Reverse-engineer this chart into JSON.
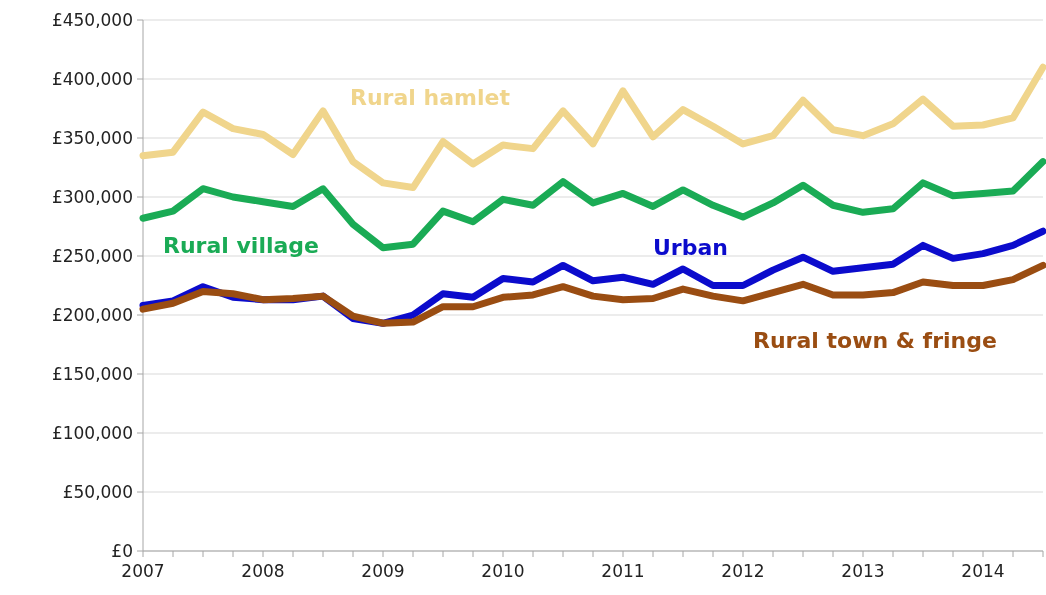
{
  "chart_data": {
    "type": "line",
    "categories": [
      "2007",
      null,
      null,
      null,
      "2008",
      null,
      null,
      null,
      "2009",
      null,
      null,
      null,
      "2010",
      null,
      null,
      null,
      "2011",
      null,
      null,
      null,
      "2012",
      null,
      null,
      null,
      "2013",
      null,
      null,
      null,
      "2014",
      null,
      null
    ],
    "series": [
      {
        "name": "Rural hamlet",
        "color": "#f0d58c",
        "values": [
          335000,
          338000,
          372000,
          358000,
          353000,
          336000,
          373000,
          330000,
          312000,
          308000,
          347000,
          328000,
          344000,
          341000,
          373000,
          345000,
          390000,
          351000,
          374000,
          360000,
          345000,
          352000,
          382000,
          357000,
          352000,
          362000,
          383000,
          360000,
          361000,
          367000,
          410000
        ]
      },
      {
        "name": "Rural village",
        "color": "#1aab55",
        "values": [
          282000,
          288000,
          307000,
          300000,
          296000,
          292000,
          307000,
          277000,
          257000,
          260000,
          288000,
          279000,
          298000,
          293000,
          313000,
          295000,
          303000,
          292000,
          306000,
          293000,
          283000,
          295000,
          310000,
          293000,
          287000,
          290000,
          312000,
          301000,
          303000,
          305000,
          330000
        ]
      },
      {
        "name": "Urban",
        "color": "#0b0bcc",
        "values": [
          208000,
          212000,
          224000,
          215000,
          213000,
          213000,
          216000,
          197000,
          193000,
          200000,
          218000,
          215000,
          231000,
          228000,
          242000,
          229000,
          232000,
          226000,
          239000,
          225000,
          225000,
          238000,
          249000,
          237000,
          240000,
          243000,
          259000,
          248000,
          252000,
          259000,
          271000
        ]
      },
      {
        "name": "Rural town & fringe",
        "color": "#9a4d12",
        "values": [
          205000,
          210000,
          220000,
          218000,
          213000,
          214000,
          216000,
          199000,
          193000,
          194000,
          207000,
          207000,
          215000,
          217000,
          224000,
          216000,
          213000,
          214000,
          222000,
          216000,
          212000,
          219000,
          226000,
          217000,
          217000,
          219000,
          228000,
          225000,
          225000,
          230000,
          242000
        ]
      }
    ],
    "ylim": [
      0,
      450000
    ],
    "yticks": [
      {
        "value": 0,
        "label": "£0"
      },
      {
        "value": 50000,
        "label": "£50,000"
      },
      {
        "value": 100000,
        "label": "£100,000"
      },
      {
        "value": 150000,
        "label": "£150,000"
      },
      {
        "value": 200000,
        "label": "£200,000"
      },
      {
        "value": 250000,
        "label": "£250,000"
      },
      {
        "value": 300000,
        "label": "£300,000"
      },
      {
        "value": 350000,
        "label": "£350,000"
      },
      {
        "value": 400000,
        "label": "£400,000"
      },
      {
        "value": 450000,
        "label": "£450,000"
      }
    ],
    "grid": "y",
    "marker": "none",
    "line_style": "solid"
  }
}
